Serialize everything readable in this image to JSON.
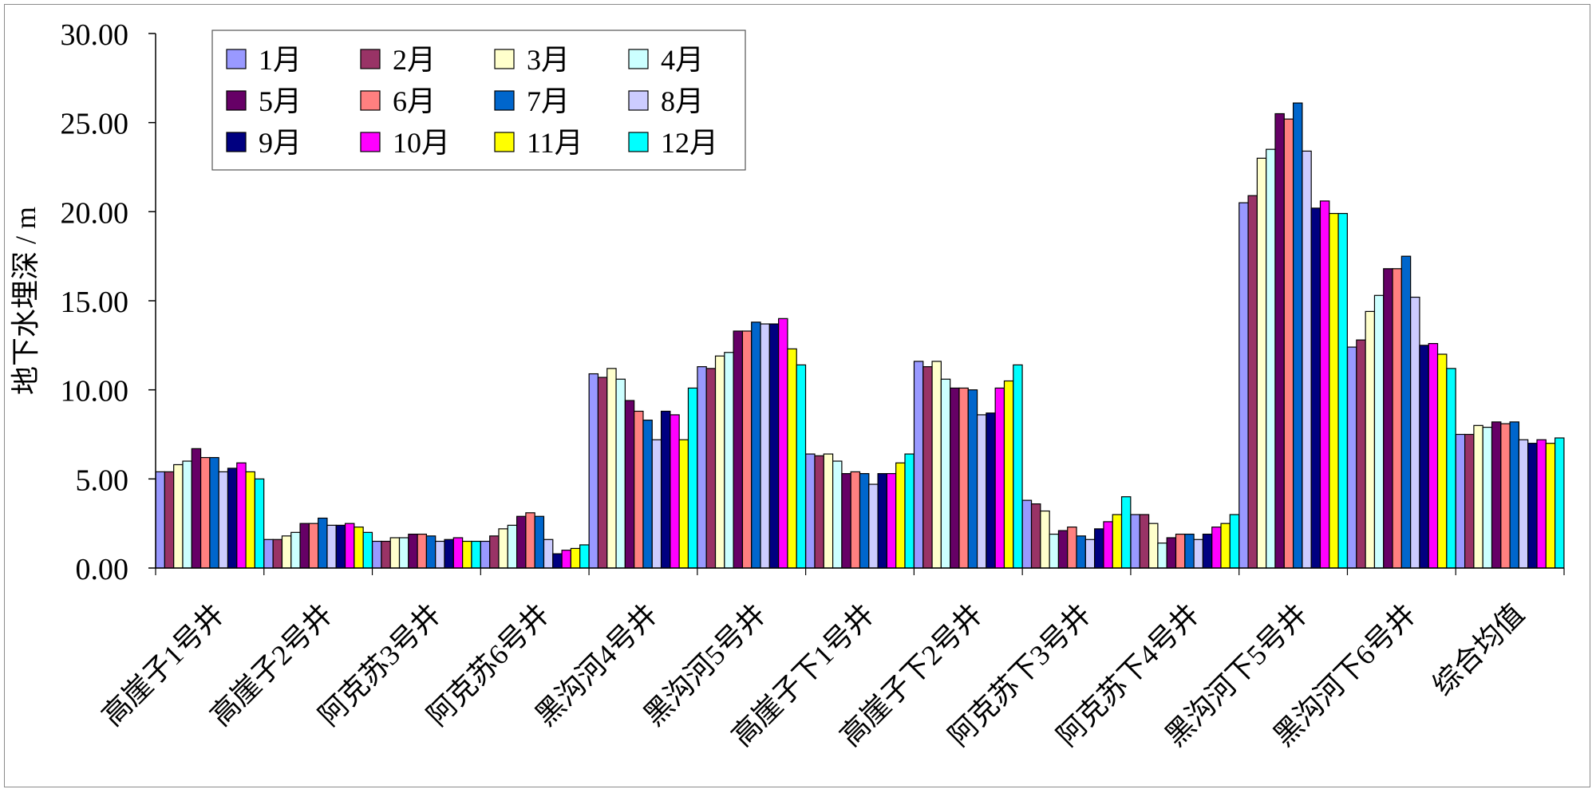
{
  "chart_data": {
    "type": "bar",
    "title": "",
    "xlabel": "",
    "ylabel": "地下水埋深 / m",
    "ylim": [
      0,
      30
    ],
    "yticks": [
      "0.00",
      "5.00",
      "10.00",
      "15.00",
      "20.00",
      "25.00",
      "30.00"
    ],
    "grid": false,
    "legend_position": "top-left",
    "categories": [
      "高崖子1号井",
      "高崖子2号井",
      "阿克苏3号井",
      "阿克苏6号井",
      "黑沟河4号井",
      "黑沟河5号井",
      "高崖子下1号井",
      "高崖子下2号井",
      "阿克苏下3号井",
      "阿克苏下4号井",
      "黑沟河下5号井",
      "黑沟河下6号井",
      "综合均值"
    ],
    "series": [
      {
        "name": "1月",
        "color": "#9999FF",
        "values": [
          5.4,
          1.6,
          1.5,
          1.5,
          10.9,
          11.3,
          6.4,
          11.6,
          3.8,
          3.0,
          20.5,
          12.4,
          7.5
        ]
      },
      {
        "name": "2月",
        "color": "#993366",
        "values": [
          5.4,
          1.6,
          1.5,
          1.8,
          10.7,
          11.2,
          6.3,
          11.3,
          3.6,
          3.0,
          20.9,
          12.8,
          7.5
        ]
      },
      {
        "name": "3月",
        "color": "#FFFFCC",
        "values": [
          5.8,
          1.8,
          1.7,
          2.2,
          11.2,
          11.9,
          6.4,
          11.6,
          3.2,
          2.5,
          23.0,
          14.4,
          8.0
        ]
      },
      {
        "name": "4月",
        "color": "#CCFFFF",
        "values": [
          6.0,
          2.0,
          1.7,
          2.4,
          10.6,
          12.1,
          6.0,
          10.6,
          1.9,
          1.4,
          23.5,
          15.3,
          7.9
        ]
      },
      {
        "name": "5月",
        "color": "#660066",
        "values": [
          6.7,
          2.5,
          1.9,
          2.9,
          9.4,
          13.3,
          5.3,
          10.1,
          2.1,
          1.7,
          25.5,
          16.8,
          8.2
        ]
      },
      {
        "name": "6月",
        "color": "#FF8080",
        "values": [
          6.2,
          2.5,
          1.9,
          3.1,
          8.8,
          13.3,
          5.4,
          10.1,
          2.3,
          1.9,
          25.2,
          16.8,
          8.1
        ]
      },
      {
        "name": "7月",
        "color": "#0066CC",
        "values": [
          6.2,
          2.8,
          1.8,
          2.9,
          8.3,
          13.8,
          5.3,
          10.0,
          1.8,
          1.9,
          26.1,
          17.5,
          8.2
        ]
      },
      {
        "name": "8月",
        "color": "#CCCCFF",
        "values": [
          5.4,
          2.4,
          1.5,
          1.6,
          7.2,
          13.7,
          4.7,
          8.6,
          1.6,
          1.6,
          23.4,
          15.2,
          7.2
        ]
      },
      {
        "name": "9月",
        "color": "#000080",
        "values": [
          5.6,
          2.4,
          1.6,
          0.8,
          8.8,
          13.7,
          5.3,
          8.7,
          2.2,
          1.9,
          20.2,
          12.5,
          7.0
        ]
      },
      {
        "name": "10月",
        "color": "#FF00FF",
        "values": [
          5.9,
          2.5,
          1.7,
          1.0,
          8.6,
          14.0,
          5.3,
          10.1,
          2.6,
          2.3,
          20.6,
          12.6,
          7.2
        ]
      },
      {
        "name": "11月",
        "color": "#FFFF00",
        "values": [
          5.4,
          2.3,
          1.5,
          1.1,
          7.2,
          12.3,
          5.9,
          10.5,
          3.0,
          2.5,
          19.9,
          12.0,
          7.0
        ]
      },
      {
        "name": "12月",
        "color": "#00FFFF",
        "values": [
          5.0,
          2.0,
          1.5,
          1.3,
          10.1,
          11.4,
          6.4,
          11.4,
          4.0,
          3.0,
          19.9,
          11.2,
          7.3
        ]
      }
    ]
  }
}
